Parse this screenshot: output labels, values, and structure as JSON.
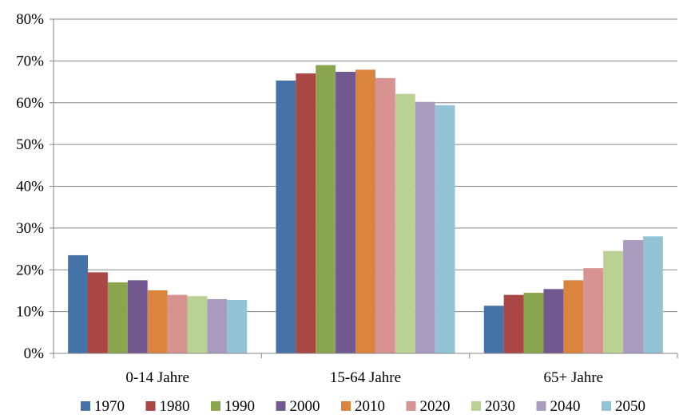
{
  "chart_data": {
    "type": "bar",
    "title": "",
    "xlabel": "",
    "ylabel": "",
    "categories": [
      "0-14 Jahre",
      "15-64 Jahre",
      "65+ Jahre"
    ],
    "ylim": [
      0,
      80
    ],
    "yticks": [
      0,
      10,
      20,
      30,
      40,
      50,
      60,
      70,
      80
    ],
    "ytick_labels": [
      "0%",
      "10%",
      "20%",
      "30%",
      "40%",
      "50%",
      "60%",
      "70%",
      "80%"
    ],
    "grid": true,
    "legend_position": "bottom",
    "series": [
      {
        "name": "1970",
        "color": "#4572A7",
        "values": [
          23.5,
          65.3,
          11.4
        ]
      },
      {
        "name": "1980",
        "color": "#AA4643",
        "values": [
          19.4,
          67.0,
          14.0
        ]
      },
      {
        "name": "1990",
        "color": "#89A54E",
        "values": [
          17.0,
          69.0,
          14.5
        ]
      },
      {
        "name": "2000",
        "color": "#71588F",
        "values": [
          17.5,
          67.4,
          15.4
        ]
      },
      {
        "name": "2010",
        "color": "#DB843D",
        "values": [
          15.1,
          67.9,
          17.5
        ]
      },
      {
        "name": "2020",
        "color": "#D69391",
        "values": [
          14.0,
          65.9,
          20.4
        ]
      },
      {
        "name": "2030",
        "color": "#B9D193",
        "values": [
          13.7,
          62.1,
          24.5
        ]
      },
      {
        "name": "2040",
        "color": "#A99BBD",
        "values": [
          13.0,
          60.2,
          27.1
        ]
      },
      {
        "name": "2050",
        "color": "#93C4D6",
        "values": [
          12.8,
          59.4,
          28.0
        ]
      }
    ]
  }
}
